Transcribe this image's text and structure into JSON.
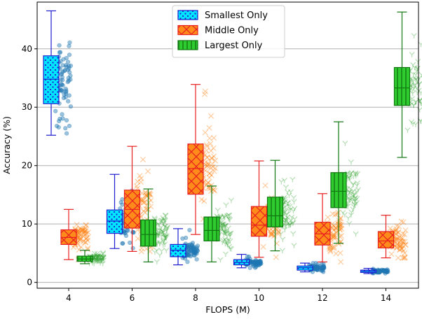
{
  "chart_data": {
    "type": "box",
    "title": "",
    "xlabel": "FLOPS (M)",
    "ylabel": "Accuracy (%)",
    "categories": [
      "4",
      "6",
      "8",
      "10",
      "12",
      "14"
    ],
    "ylim": [
      -1,
      48
    ],
    "yticks": [
      0,
      10,
      20,
      30,
      40
    ],
    "grid": "horizontal",
    "legend_position": "top-center",
    "colors": {
      "smallest_fill": "#00e5ff",
      "smallest_edge": "#1f1fd0",
      "smallest_points": "#1f77b4",
      "middle_fill": "#ff8c1a",
      "middle_edge": "#e82020",
      "middle_points": "#ff7f0e",
      "largest_fill": "#2ecc2e",
      "largest_edge": "#117711",
      "largest_points": "#2ca02c",
      "grid": "#b0b0b0"
    },
    "series": [
      {
        "name": "Smallest Only",
        "hatch": "dots",
        "boxes": [
          {
            "x": "4",
            "min": 25.2,
            "q1": 30.6,
            "median": 34.8,
            "q3": 38.8,
            "max": 46.5
          },
          {
            "x": "6",
            "min": 5.8,
            "q1": 8.4,
            "median": 10.5,
            "q3": 12.4,
            "max": 18.5
          },
          {
            "x": "8",
            "min": 3.0,
            "q1": 4.4,
            "median": 5.5,
            "q3": 6.5,
            "max": 9.2
          },
          {
            "x": "10",
            "min": 2.5,
            "q1": 3.0,
            "median": 3.4,
            "q3": 3.9,
            "max": 4.8
          },
          {
            "x": "12",
            "min": 1.8,
            "q1": 2.1,
            "median": 2.5,
            "q3": 2.8,
            "max": 3.3
          },
          {
            "x": "14",
            "min": 1.5,
            "q1": 1.7,
            "median": 1.9,
            "q3": 2.1,
            "max": 2.4
          }
        ]
      },
      {
        "name": "Middle Only",
        "hatch": "cross",
        "boxes": [
          {
            "x": "4",
            "min": 3.9,
            "q1": 6.5,
            "median": 7.7,
            "q3": 9.0,
            "max": 12.5
          },
          {
            "x": "6",
            "min": 5.3,
            "q1": 9.3,
            "median": 12.5,
            "q3": 15.8,
            "max": 23.3
          },
          {
            "x": "8",
            "min": 8.2,
            "q1": 15.1,
            "median": 19.5,
            "q3": 23.7,
            "max": 33.9
          },
          {
            "x": "10",
            "min": 4.3,
            "q1": 7.9,
            "median": 9.8,
            "q3": 13.0,
            "max": 20.8
          },
          {
            "x": "12",
            "min": 3.5,
            "q1": 6.4,
            "median": 8.3,
            "q3": 10.3,
            "max": 15.2
          },
          {
            "x": "14",
            "min": 4.2,
            "q1": 5.9,
            "median": 7.1,
            "q3": 8.7,
            "max": 11.5
          }
        ]
      },
      {
        "name": "Largest Only",
        "hatch": "vertical",
        "boxes": [
          {
            "x": "4",
            "min": 3.2,
            "q1": 3.6,
            "median": 4.0,
            "q3": 4.5,
            "max": 5.5
          },
          {
            "x": "6",
            "min": 3.5,
            "q1": 6.2,
            "median": 8.2,
            "q3": 10.7,
            "max": 16.0
          },
          {
            "x": "8",
            "min": 3.5,
            "q1": 7.1,
            "median": 8.9,
            "q3": 11.2,
            "max": 16.5
          },
          {
            "x": "10",
            "min": 5.4,
            "q1": 9.5,
            "median": 11.4,
            "q3": 14.6,
            "max": 20.9
          },
          {
            "x": "12",
            "min": 6.7,
            "q1": 12.8,
            "median": 15.6,
            "q3": 18.8,
            "max": 27.5
          },
          {
            "x": "14",
            "min": 21.4,
            "q1": 30.3,
            "median": 33.3,
            "q3": 36.8,
            "max": 46.3
          }
        ]
      }
    ]
  }
}
